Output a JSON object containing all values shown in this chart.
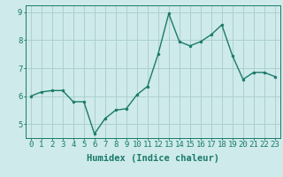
{
  "x": [
    0,
    1,
    2,
    3,
    4,
    5,
    6,
    7,
    8,
    9,
    10,
    11,
    12,
    13,
    14,
    15,
    16,
    17,
    18,
    19,
    20,
    21,
    22,
    23
  ],
  "y": [
    6.0,
    6.15,
    6.2,
    6.2,
    5.8,
    5.8,
    4.65,
    5.2,
    5.5,
    5.55,
    6.05,
    6.35,
    7.5,
    8.95,
    7.95,
    7.8,
    7.95,
    8.2,
    8.55,
    7.45,
    6.6,
    6.85,
    6.85,
    6.7
  ],
  "line_color": "#1a7a6a",
  "marker": "o",
  "markersize": 2.0,
  "linewidth": 1.0,
  "bg_color": "#ceeaea",
  "grid_color": "#a8cccc",
  "xlabel": "Humidex (Indice chaleur)",
  "xlim": [
    -0.5,
    23.5
  ],
  "ylim": [
    4.5,
    9.25
  ],
  "yticks": [
    5,
    6,
    7,
    8,
    9
  ],
  "xticks": [
    0,
    1,
    2,
    3,
    4,
    5,
    6,
    7,
    8,
    9,
    10,
    11,
    12,
    13,
    14,
    15,
    16,
    17,
    18,
    19,
    20,
    21,
    22,
    23
  ],
  "tick_labelsize": 6.5,
  "xlabel_fontsize": 7.5
}
